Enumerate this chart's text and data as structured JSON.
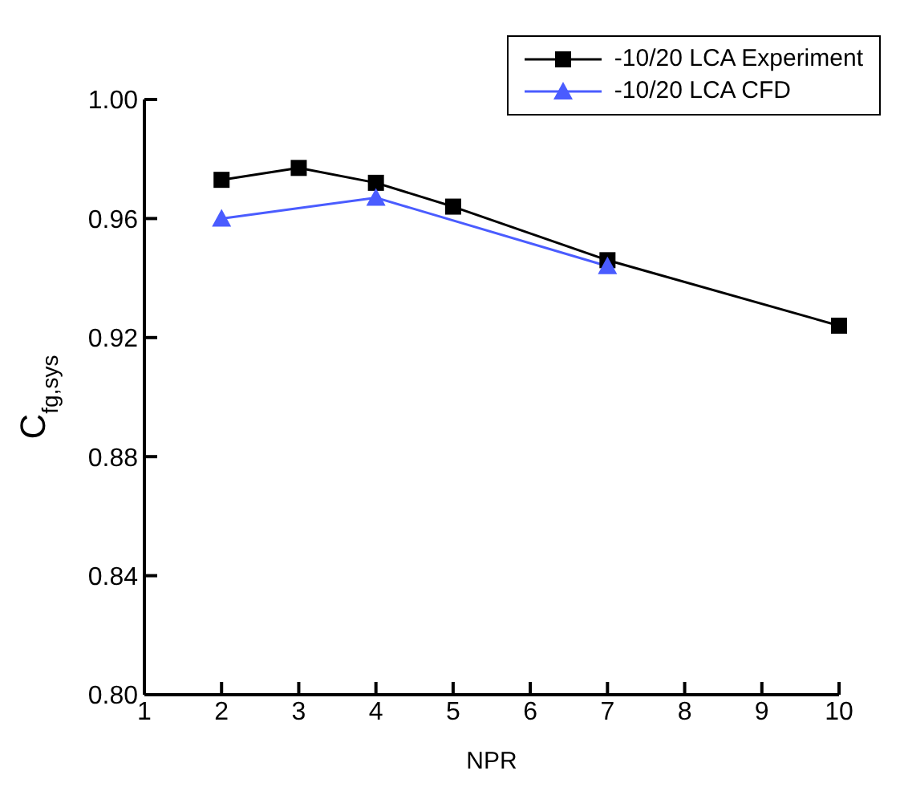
{
  "chart_data": {
    "type": "line",
    "xlabel": "NPR",
    "ylabel": "C$_{fg,sys}$",
    "xlim": [
      1,
      10
    ],
    "xticks": [
      1,
      2,
      3,
      4,
      5,
      6,
      7,
      8,
      9,
      10
    ],
    "ylim": [
      0.8,
      1.0
    ],
    "yticks": [
      {
        "value": 0.8,
        "label": "0.80"
      },
      0.84,
      0.88,
      0.92,
      0.96,
      {
        "value": 1.0,
        "label": "1.00"
      }
    ],
    "grid": false,
    "legend": "top right",
    "series": [
      {
        "name": "-10/20 LCA Experiment",
        "color": "#000000",
        "marker": "square",
        "x": [
          2,
          3,
          4,
          5,
          7,
          10
        ],
        "values": [
          0.973,
          0.977,
          0.972,
          0.964,
          0.946,
          0.924
        ]
      },
      {
        "name": "-10/20 LCA  CFD",
        "color": "#4a5cff",
        "marker": "triangle",
        "x": [
          2,
          4,
          7
        ],
        "values": [
          0.96,
          0.967,
          0.944
        ]
      }
    ]
  }
}
